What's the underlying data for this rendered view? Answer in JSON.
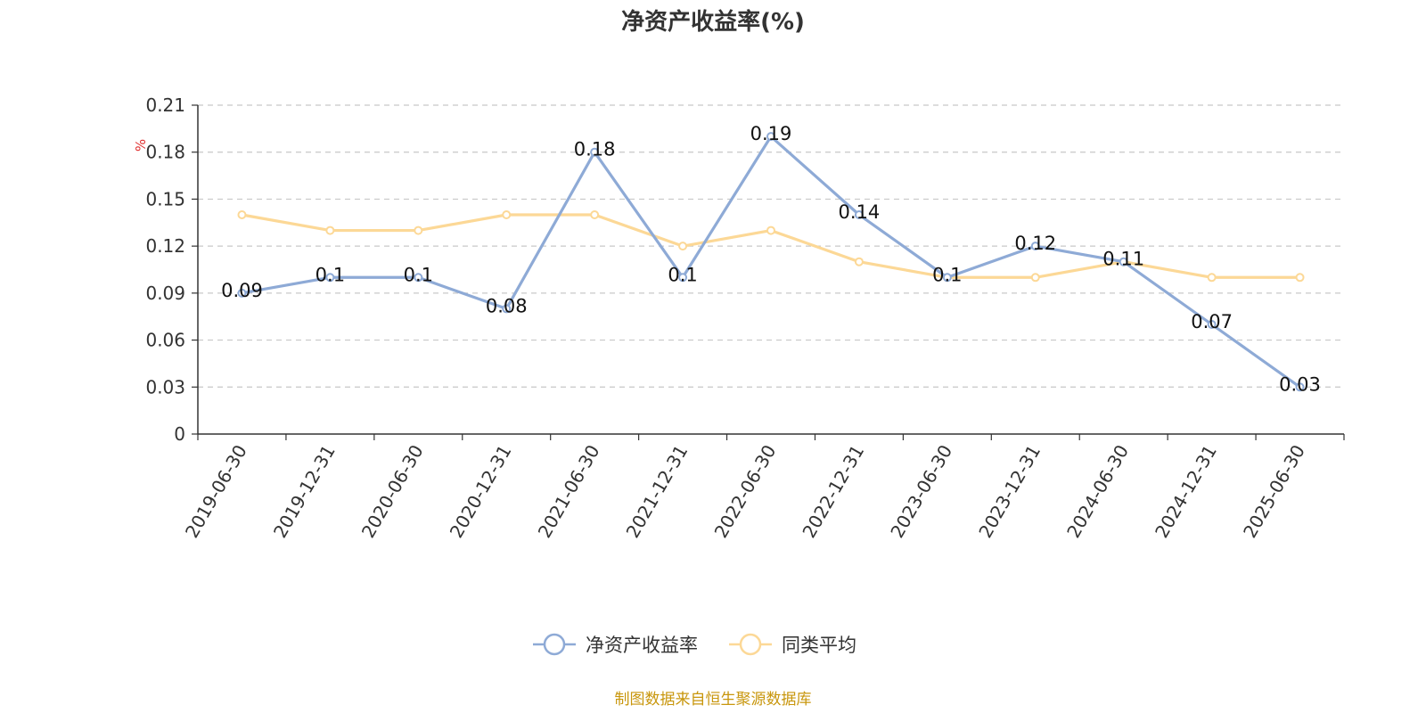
{
  "chart_data": {
    "type": "line",
    "title": "净资产收益率(%)",
    "unit_label": "%",
    "categories": [
      "2019-06-30",
      "2019-12-31",
      "2020-06-30",
      "2020-12-31",
      "2021-06-30",
      "2021-12-31",
      "2022-06-30",
      "2022-12-31",
      "2023-06-30",
      "2023-12-31",
      "2024-06-30",
      "2024-12-31",
      "2025-06-30"
    ],
    "series": [
      {
        "name": "净资产收益率",
        "color": "#8eaad6",
        "values": [
          0.09,
          0.1,
          0.1,
          0.08,
          0.18,
          0.1,
          0.19,
          0.14,
          0.1,
          0.12,
          0.11,
          0.07,
          0.03
        ],
        "data_labels": true
      },
      {
        "name": "同类平均",
        "color": "#fcd896",
        "values": [
          0.14,
          0.13,
          0.13,
          0.14,
          0.14,
          0.12,
          0.13,
          0.11,
          0.1,
          0.1,
          0.11,
          0.1,
          0.1
        ],
        "data_labels": false
      }
    ],
    "ylim": [
      0,
      0.21
    ],
    "yticks": [
      "0",
      "0.03",
      "0.06",
      "0.09",
      "0.12",
      "0.15",
      "0.18",
      "0.21"
    ],
    "grid": true,
    "legend_position": "bottom"
  },
  "source": {
    "text": "制图数据来自恒生聚源数据库",
    "color": "#c8960c"
  },
  "unit_color": "#e03030"
}
